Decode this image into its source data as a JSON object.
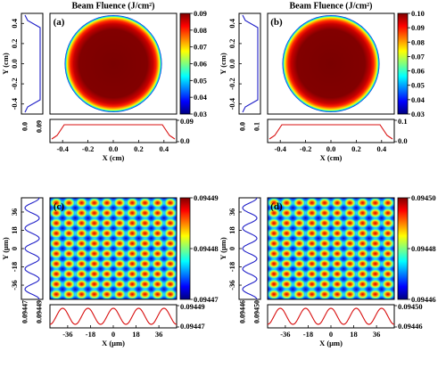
{
  "chart_data": [
    {
      "type": "heatmap",
      "panel": "(a)",
      "title": "Beam Fluence (J/cm²)",
      "pattern": "flat-top-disc",
      "xlabel": "X (cm)",
      "ylabel": "Y (cm)",
      "xlim": [
        -0.5,
        0.5
      ],
      "ylim": [
        -0.5,
        0.5
      ],
      "x_ticks": [
        "-0.4",
        "-0.2",
        "0.0",
        "0.2",
        "0.4"
      ],
      "y_ticks": [
        "-0.4",
        "-0.2",
        "0.0",
        "0.2",
        "0.4"
      ],
      "colorbar": {
        "min": 0.03,
        "max": 0.09,
        "ticks": [
          "0.09",
          "0.08",
          "0.07",
          "0.06",
          "0.05",
          "0.04",
          "0.03"
        ]
      },
      "side_profile": {
        "ticks": [
          "0.0",
          "0.09"
        ]
      },
      "bottom_profile": {
        "ticks": [
          "0.09",
          "0.0"
        ]
      }
    },
    {
      "type": "heatmap",
      "panel": "(b)",
      "title": "Beam Fluence (J/cm²)",
      "pattern": "flat-top-disc",
      "xlabel": "X (cm)",
      "ylabel": "Y (cm)",
      "xlim": [
        -0.5,
        0.5
      ],
      "ylim": [
        -0.5,
        0.5
      ],
      "x_ticks": [
        "-0.4",
        "-0.2",
        "0.0",
        "0.2",
        "0.4"
      ],
      "y_ticks": [
        "-0.4",
        "-0.2",
        "0.0",
        "0.2",
        "0.4"
      ],
      "colorbar": {
        "min": 0.03,
        "max": 0.1,
        "ticks": [
          "0.10",
          "0.09",
          "0.08",
          "0.07",
          "0.06",
          "0.05",
          "0.04",
          "0.03"
        ]
      },
      "side_profile": {
        "ticks": [
          "0.0",
          "0.1"
        ]
      },
      "bottom_profile": {
        "ticks": [
          "0.1",
          "0.0"
        ]
      }
    },
    {
      "type": "heatmap",
      "panel": "(c)",
      "title": "",
      "pattern": "periodic-grid",
      "xlabel": "X (μm)",
      "ylabel": "Y (μm)",
      "xlim": [
        -50,
        50
      ],
      "ylim": [
        -50,
        50
      ],
      "x_ticks": [
        "-36",
        "-18",
        "0",
        "18",
        "36"
      ],
      "y_ticks": [
        "-36",
        "-18",
        "0",
        "18",
        "36"
      ],
      "colorbar": {
        "min": 0.09447,
        "max": 0.09449,
        "ticks": [
          "0.09449",
          "0.09448",
          "0.09447"
        ]
      },
      "side_profile": {
        "ticks": [
          "0.09447",
          "0.09449"
        ]
      },
      "bottom_profile": {
        "ticks": [
          "0.09449",
          "0.09447"
        ]
      }
    },
    {
      "type": "heatmap",
      "panel": "(d)",
      "title": "",
      "pattern": "periodic-grid",
      "xlabel": "X (μm)",
      "ylabel": "Y (μm)",
      "xlim": [
        -50,
        50
      ],
      "ylim": [
        -50,
        50
      ],
      "x_ticks": [
        "-36",
        "-18",
        "0",
        "18",
        "36"
      ],
      "y_ticks": [
        "-36",
        "-18",
        "0",
        "18",
        "36"
      ],
      "colorbar": {
        "min": 0.09446,
        "max": 0.0945,
        "ticks": [
          "0.09450",
          "0.09448",
          "0.09446"
        ]
      },
      "side_profile": {
        "ticks": [
          "0.09446",
          "0.09450"
        ]
      },
      "bottom_profile": {
        "ticks": [
          "0.09450",
          "0.09446"
        ]
      }
    }
  ],
  "colors": {
    "profile_side": "#2020c8",
    "profile_bottom": "#d81010",
    "colormap": [
      "#00007f",
      "#0000ff",
      "#007fff",
      "#00ffff",
      "#7fff7f",
      "#ffff00",
      "#ff7f00",
      "#ff0000",
      "#7f0000"
    ]
  }
}
